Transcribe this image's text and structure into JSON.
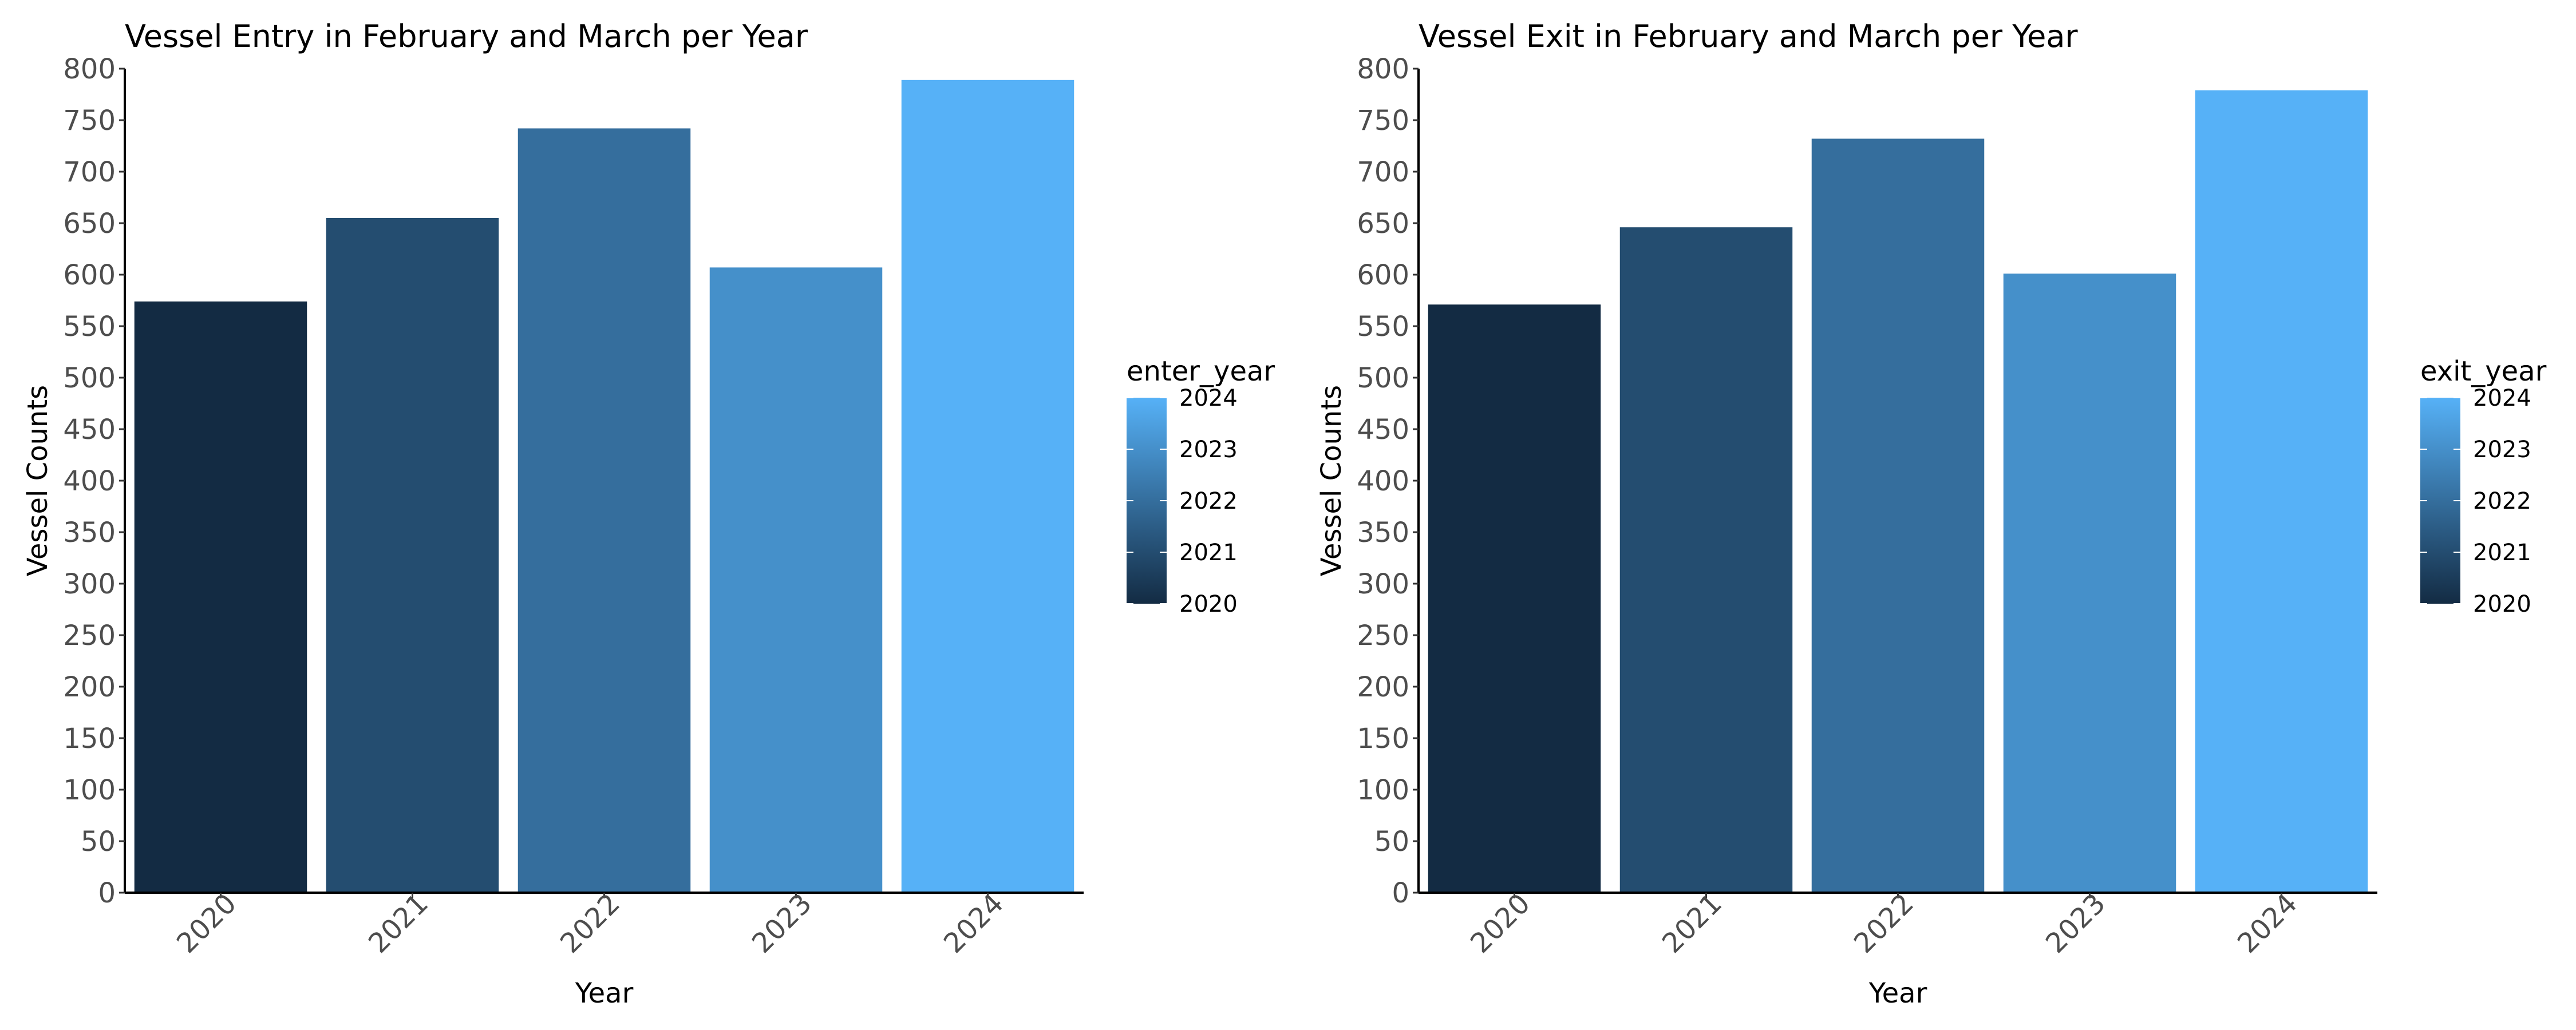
{
  "chart_data": [
    {
      "type": "bar",
      "title": "Vessel Entry in February and March per Year",
      "xlabel": "Year",
      "ylabel": "Vessel Counts",
      "categories": [
        "2020",
        "2021",
        "2022",
        "2023",
        "2024"
      ],
      "values": [
        574,
        655,
        742,
        607,
        789
      ],
      "ylim": [
        0,
        800
      ],
      "yticks": [
        0,
        50,
        100,
        150,
        200,
        250,
        300,
        350,
        400,
        450,
        500,
        550,
        600,
        650,
        700,
        750,
        800
      ],
      "grid": false,
      "legend": {
        "title": "enter_year",
        "type": "gradient",
        "labels": [
          "2024",
          "2023",
          "2022",
          "2021",
          "2020"
        ],
        "range": [
          2020,
          2024
        ],
        "placement": "right"
      }
    },
    {
      "type": "bar",
      "title": "Vessel Exit in February and March per Year",
      "xlabel": "Year",
      "ylabel": "Vessel Counts",
      "categories": [
        "2020",
        "2021",
        "2022",
        "2023",
        "2024"
      ],
      "values": [
        571,
        646,
        732,
        601,
        779
      ],
      "ylim": [
        0,
        800
      ],
      "yticks": [
        0,
        50,
        100,
        150,
        200,
        250,
        300,
        350,
        400,
        450,
        500,
        550,
        600,
        650,
        700,
        750,
        800
      ],
      "grid": false,
      "legend": {
        "title": "exit_year",
        "type": "gradient",
        "labels": [
          "2024",
          "2023",
          "2022",
          "2021",
          "2020"
        ],
        "range": [
          2020,
          2024
        ],
        "placement": "right"
      }
    }
  ],
  "colors": {
    "scale_low": "#132B43",
    "scale_high": "#56B1F7",
    "axis": "#000000",
    "tick_text": "#4d4d4d"
  }
}
